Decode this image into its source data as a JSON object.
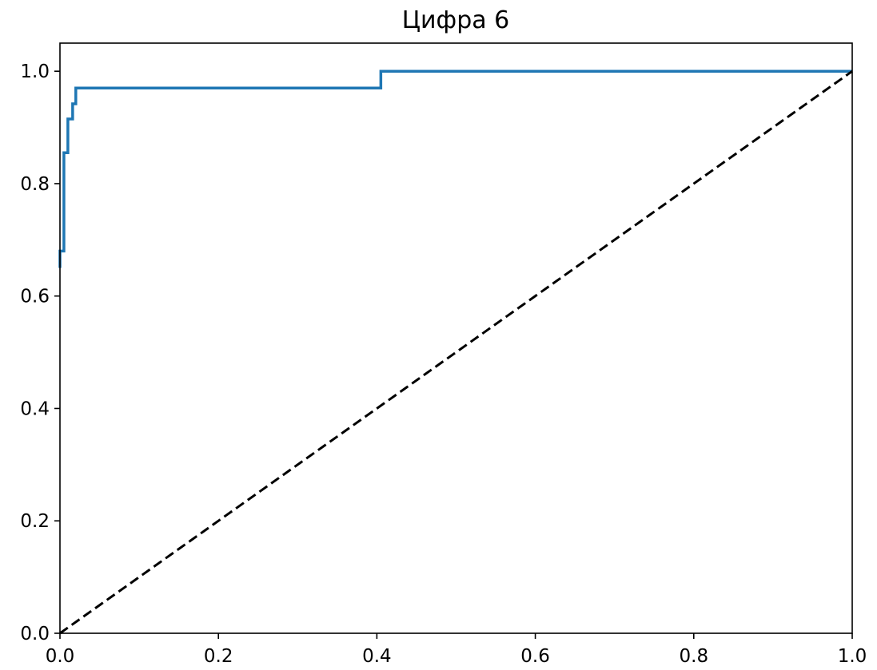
{
  "chart_data": {
    "type": "line",
    "title": "Цифра 6",
    "xlabel": "",
    "ylabel": "",
    "xlim": [
      0,
      1
    ],
    "ylim": [
      0,
      1.05
    ],
    "grid": false,
    "x_ticks": [
      "0.0",
      "0.2",
      "0.4",
      "0.6",
      "0.8",
      "1.0"
    ],
    "y_ticks": [
      "0.0",
      "0.2",
      "0.4",
      "0.6",
      "0.8",
      "1.0"
    ],
    "series": [
      {
        "style": "step",
        "color": "#1f77b4",
        "x": [
          0.0,
          0.0,
          0.005,
          0.005,
          0.008,
          0.008,
          0.01,
          0.01,
          0.016,
          0.016,
          0.02,
          0.02,
          0.405,
          0.405,
          1.0
        ],
        "y": [
          0.65,
          0.68,
          0.68,
          0.855,
          0.855,
          0.855,
          0.855,
          0.915,
          0.915,
          0.942,
          0.942,
          0.97,
          0.97,
          1.0,
          1.0
        ]
      },
      {
        "style": "dashed",
        "color": "#000000",
        "x": [
          0,
          1
        ],
        "y": [
          0,
          1
        ]
      }
    ]
  }
}
